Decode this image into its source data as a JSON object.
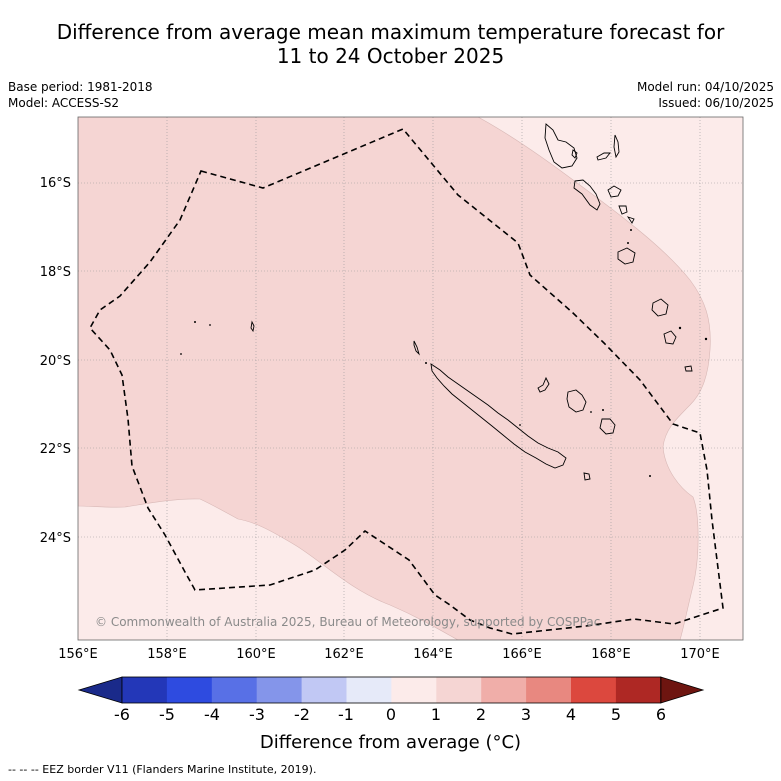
{
  "title": {
    "line1": "Difference from average mean maximum temperature forecast for",
    "line2": "11 to 24 October 2025"
  },
  "meta": {
    "base_period": "Base period: 1981-2018",
    "model": "Model: ACCESS-S2",
    "model_run": "Model run: 04/10/2025",
    "issued": "Issued: 06/10/2025"
  },
  "map": {
    "lat_labels": [
      "16°S",
      "18°S",
      "20°S",
      "22°S",
      "24°S"
    ],
    "lon_labels": [
      "156°E",
      "158°E",
      "160°E",
      "162°E",
      "164°E",
      "166°E",
      "168°E",
      "170°E"
    ],
    "copyright": "© Commonwealth of Australia 2025, Bureau of Meteorology, supported by COSPPac",
    "fill_light": "#fcebea",
    "fill_pink": "#f5d5d3",
    "coast_color": "#000000"
  },
  "colorbar": {
    "ticks": [
      "-6",
      "-5",
      "-4",
      "-3",
      "-2",
      "-1",
      "0",
      "1",
      "2",
      "3",
      "4",
      "5",
      "6"
    ],
    "colors": [
      "#1a2a8a",
      "#2337b8",
      "#2e4be0",
      "#5870e6",
      "#8495ea",
      "#c1c8f4",
      "#e6eaf9",
      "#fcebea",
      "#f5d5d3",
      "#f0aea9",
      "#e88880",
      "#dc483e",
      "#ae2824",
      "#6e1510"
    ],
    "label": "Difference from average (°C)"
  },
  "footnote": "-- -- -- EEZ border V11 (Flanders Marine Institute, 2019)."
}
